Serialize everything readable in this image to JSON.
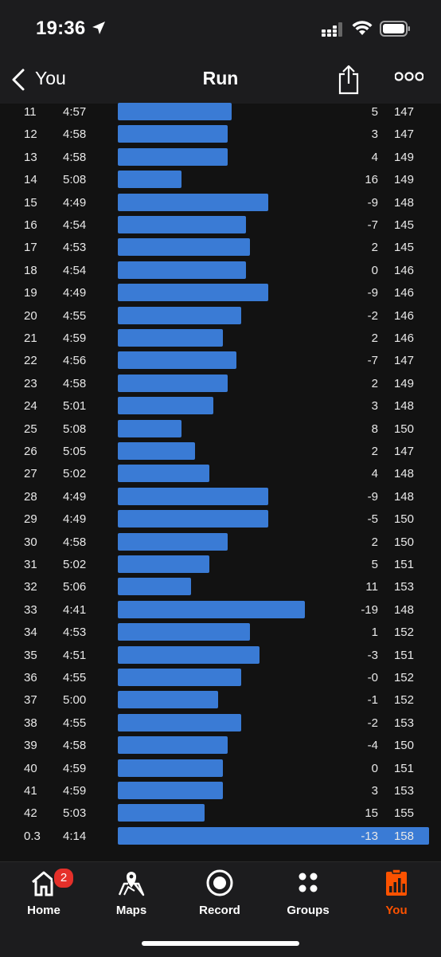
{
  "status_bar": {
    "time": "19:36"
  },
  "nav": {
    "back_label": "You",
    "title": "Run"
  },
  "splits": [
    {
      "km": "11",
      "pace": "4:57",
      "pace_sec": 297,
      "elev": "5",
      "hr": "147"
    },
    {
      "km": "12",
      "pace": "4:58",
      "pace_sec": 298,
      "elev": "3",
      "hr": "147"
    },
    {
      "km": "13",
      "pace": "4:58",
      "pace_sec": 298,
      "elev": "4",
      "hr": "149"
    },
    {
      "km": "14",
      "pace": "5:08",
      "pace_sec": 308,
      "elev": "16",
      "hr": "149"
    },
    {
      "km": "15",
      "pace": "4:49",
      "pace_sec": 289,
      "elev": "-9",
      "hr": "148"
    },
    {
      "km": "16",
      "pace": "4:54",
      "pace_sec": 294,
      "elev": "-7",
      "hr": "145"
    },
    {
      "km": "17",
      "pace": "4:53",
      "pace_sec": 293,
      "elev": "2",
      "hr": "145"
    },
    {
      "km": "18",
      "pace": "4:54",
      "pace_sec": 294,
      "elev": "0",
      "hr": "146"
    },
    {
      "km": "19",
      "pace": "4:49",
      "pace_sec": 289,
      "elev": "-9",
      "hr": "146"
    },
    {
      "km": "20",
      "pace": "4:55",
      "pace_sec": 295,
      "elev": "-2",
      "hr": "146"
    },
    {
      "km": "21",
      "pace": "4:59",
      "pace_sec": 299,
      "elev": "2",
      "hr": "146"
    },
    {
      "km": "22",
      "pace": "4:56",
      "pace_sec": 296,
      "elev": "-7",
      "hr": "147"
    },
    {
      "km": "23",
      "pace": "4:58",
      "pace_sec": 298,
      "elev": "2",
      "hr": "149"
    },
    {
      "km": "24",
      "pace": "5:01",
      "pace_sec": 301,
      "elev": "3",
      "hr": "148"
    },
    {
      "km": "25",
      "pace": "5:08",
      "pace_sec": 308,
      "elev": "8",
      "hr": "150"
    },
    {
      "km": "26",
      "pace": "5:05",
      "pace_sec": 305,
      "elev": "2",
      "hr": "147"
    },
    {
      "km": "27",
      "pace": "5:02",
      "pace_sec": 302,
      "elev": "4",
      "hr": "148"
    },
    {
      "km": "28",
      "pace": "4:49",
      "pace_sec": 289,
      "elev": "-9",
      "hr": "148"
    },
    {
      "km": "29",
      "pace": "4:49",
      "pace_sec": 289,
      "elev": "-5",
      "hr": "150"
    },
    {
      "km": "30",
      "pace": "4:58",
      "pace_sec": 298,
      "elev": "2",
      "hr": "150"
    },
    {
      "km": "31",
      "pace": "5:02",
      "pace_sec": 302,
      "elev": "5",
      "hr": "151"
    },
    {
      "km": "32",
      "pace": "5:06",
      "pace_sec": 306,
      "elev": "11",
      "hr": "153"
    },
    {
      "km": "33",
      "pace": "4:41",
      "pace_sec": 281,
      "elev": "-19",
      "hr": "148"
    },
    {
      "km": "34",
      "pace": "4:53",
      "pace_sec": 293,
      "elev": "1",
      "hr": "152"
    },
    {
      "km": "35",
      "pace": "4:51",
      "pace_sec": 291,
      "elev": "-3",
      "hr": "151"
    },
    {
      "km": "36",
      "pace": "4:55",
      "pace_sec": 295,
      "elev": "-0",
      "hr": "152"
    },
    {
      "km": "37",
      "pace": "5:00",
      "pace_sec": 300,
      "elev": "-1",
      "hr": "152"
    },
    {
      "km": "38",
      "pace": "4:55",
      "pace_sec": 295,
      "elev": "-2",
      "hr": "153"
    },
    {
      "km": "39",
      "pace": "4:58",
      "pace_sec": 298,
      "elev": "-4",
      "hr": "150"
    },
    {
      "km": "40",
      "pace": "4:59",
      "pace_sec": 299,
      "elev": "0",
      "hr": "151"
    },
    {
      "km": "41",
      "pace": "4:59",
      "pace_sec": 299,
      "elev": "3",
      "hr": "153"
    },
    {
      "km": "42",
      "pace": "5:03",
      "pace_sec": 303,
      "elev": "15",
      "hr": "155"
    },
    {
      "km": "0.3",
      "pace": "4:14",
      "pace_sec": 254,
      "elev": "-13",
      "hr": "158"
    }
  ],
  "tabs": [
    {
      "label": "Home",
      "icon": "home-icon",
      "badge": "2"
    },
    {
      "label": "Maps",
      "icon": "maps-icon"
    },
    {
      "label": "Record",
      "icon": "record-icon"
    },
    {
      "label": "Groups",
      "icon": "groups-icon"
    },
    {
      "label": "You",
      "icon": "you-icon",
      "active": true
    }
  ],
  "colors": {
    "accent": "#fc5200",
    "bar": "#3a7bd5",
    "badge": "#e5302a"
  }
}
